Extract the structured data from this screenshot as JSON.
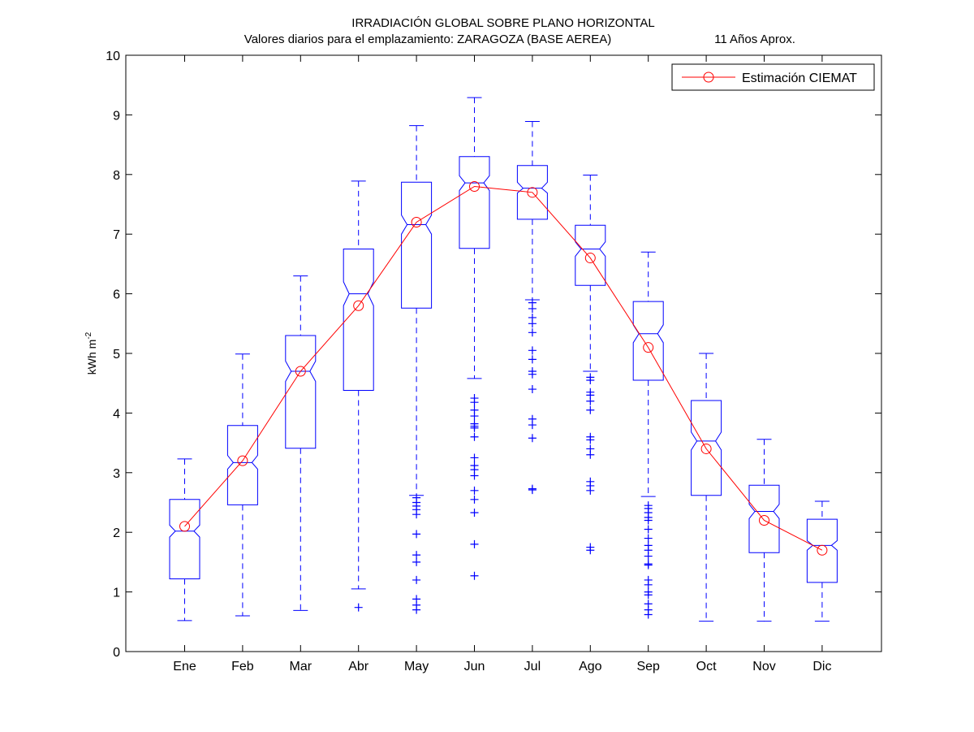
{
  "chart_data": {
    "type": "box",
    "title": "IRRADIACIÓN GLOBAL SOBRE PLANO HORIZONTAL",
    "subtitle_left": "Valores diarios para el emplazamiento:  ZARAGOZA (BASE AEREA)",
    "subtitle_right": "11 Años Aprox.",
    "ylabel": {
      "base": "kWh m",
      "exponent": "-2"
    },
    "ylim": [
      0,
      10
    ],
    "yticks": [
      "0",
      "1",
      "2",
      "3",
      "4",
      "5",
      "6",
      "7",
      "8",
      "9",
      "10"
    ],
    "categories": [
      "Ene",
      "Feb",
      "Mar",
      "Abr",
      "May",
      "Jun",
      "Jul",
      "Ago",
      "Sep",
      "Oct",
      "Nov",
      "Dic"
    ],
    "boxes": [
      {
        "min": 0.52,
        "q1": 1.22,
        "median": 2.02,
        "q3": 2.55,
        "max": 3.23,
        "notch_low": 1.92,
        "notch_high": 2.12,
        "outliers": []
      },
      {
        "min": 0.6,
        "q1": 2.46,
        "median": 3.17,
        "q3": 3.79,
        "max": 4.99,
        "notch_low": 3.06,
        "notch_high": 3.29,
        "outliers": []
      },
      {
        "min": 0.69,
        "q1": 3.41,
        "median": 4.7,
        "q3": 5.3,
        "max": 6.3,
        "notch_low": 4.53,
        "notch_high": 4.87,
        "outliers": []
      },
      {
        "min": 1.05,
        "q1": 4.38,
        "median": 6.0,
        "q3": 6.75,
        "max": 7.89,
        "notch_low": 5.8,
        "notch_high": 6.2,
        "outliers": [
          0.74
        ]
      },
      {
        "min": 2.62,
        "q1": 5.76,
        "median": 7.16,
        "q3": 7.87,
        "max": 8.82,
        "notch_low": 7.0,
        "notch_high": 7.32,
        "outliers": [
          2.58,
          2.5,
          2.44,
          2.38,
          2.3,
          1.97,
          1.62,
          1.5,
          1.2,
          0.88,
          0.78,
          0.7
        ]
      },
      {
        "min": 4.58,
        "q1": 6.76,
        "median": 7.86,
        "q3": 8.3,
        "max": 9.29,
        "notch_low": 7.73,
        "notch_high": 7.98,
        "outliers": [
          4.25,
          4.18,
          4.05,
          3.95,
          3.82,
          3.78,
          3.75,
          3.6,
          3.25,
          3.12,
          3.05,
          2.95,
          2.7,
          2.55,
          2.33,
          1.8,
          1.27
        ]
      },
      {
        "min": 5.9,
        "q1": 7.25,
        "median": 7.77,
        "q3": 8.15,
        "max": 8.89,
        "notch_low": 7.69,
        "notch_high": 7.87,
        "outliers": [
          5.85,
          5.75,
          5.6,
          5.5,
          5.35,
          5.05,
          4.9,
          4.7,
          4.65,
          4.4,
          3.9,
          3.8,
          3.58,
          2.73,
          2.71
        ]
      },
      {
        "min": 4.7,
        "q1": 6.14,
        "median": 6.75,
        "q3": 7.15,
        "max": 7.99,
        "notch_low": 6.63,
        "notch_high": 6.87,
        "outliers": [
          4.6,
          4.55,
          4.35,
          4.3,
          4.2,
          4.05,
          3.6,
          3.55,
          3.4,
          3.3,
          2.85,
          2.78,
          2.7,
          1.75,
          1.7
        ]
      },
      {
        "min": 2.6,
        "q1": 4.55,
        "median": 5.33,
        "q3": 5.87,
        "max": 6.7,
        "notch_low": 5.18,
        "notch_high": 5.48,
        "outliers": [
          2.45,
          2.4,
          2.33,
          2.25,
          2.2,
          2.05,
          1.9,
          1.78,
          1.7,
          1.6,
          1.47,
          1.45,
          1.2,
          1.12,
          1.0,
          0.95,
          0.8,
          0.7,
          0.62
        ]
      },
      {
        "min": 0.51,
        "q1": 2.62,
        "median": 3.53,
        "q3": 4.21,
        "max": 5.0,
        "notch_low": 3.38,
        "notch_high": 3.68,
        "outliers": []
      },
      {
        "min": 0.51,
        "q1": 1.66,
        "median": 2.35,
        "q3": 2.79,
        "max": 3.56,
        "notch_low": 2.23,
        "notch_high": 2.47,
        "outliers": []
      },
      {
        "min": 0.51,
        "q1": 1.16,
        "median": 1.78,
        "q3": 2.22,
        "max": 2.52,
        "notch_low": 1.7,
        "notch_high": 1.86,
        "outliers": []
      }
    ],
    "series": [
      {
        "name": "Estimación CIEMAT",
        "values": [
          2.1,
          3.2,
          4.7,
          5.8,
          7.2,
          7.8,
          7.7,
          6.6,
          5.1,
          3.4,
          2.2,
          1.7
        ],
        "color": "#ff0000",
        "marker": "circle"
      }
    ],
    "box_color": "#0000ff",
    "legend_position": "top-right",
    "grid": false
  }
}
